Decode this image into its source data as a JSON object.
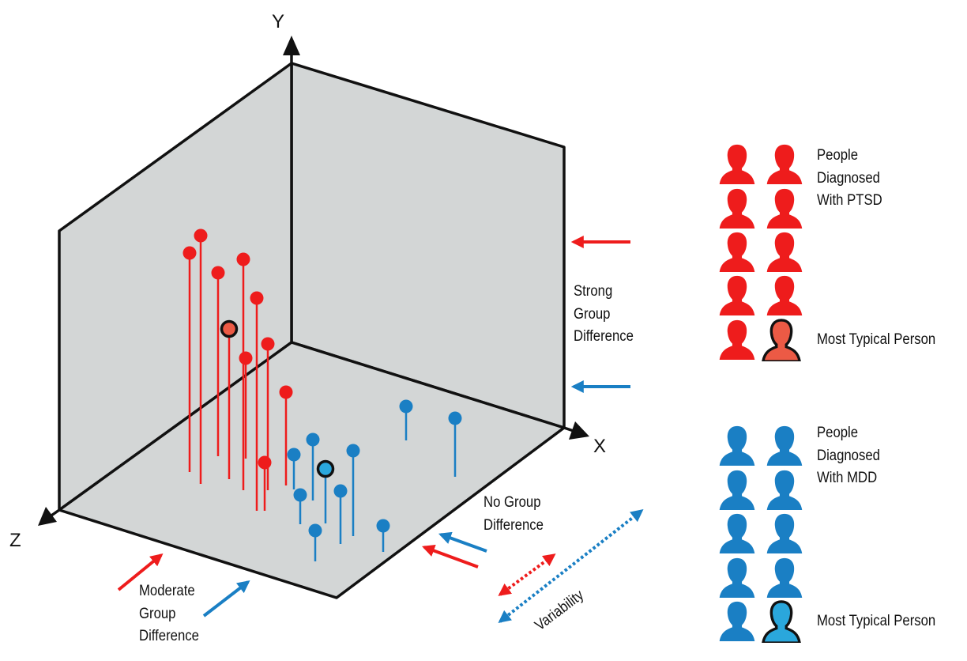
{
  "axes": {
    "x": "X",
    "y": "Y",
    "z": "Z"
  },
  "labels": {
    "strong": [
      "Strong",
      "Group",
      "Difference"
    ],
    "moderate": [
      "Moderate",
      "Group",
      "Difference"
    ],
    "none": [
      "No Group",
      "Difference"
    ],
    "variability": "Variability"
  },
  "legend": {
    "ptsd": {
      "title": [
        "People",
        "Diagnosed",
        "With PTSD"
      ],
      "typical": "Most Typical Person",
      "color": "#ee1c1c",
      "typical_color": "#ec5a45"
    },
    "mdd": {
      "title": [
        "People",
        "Diagnosed",
        "With MDD"
      ],
      "typical": "Most Typical Person",
      "color": "#1a7fc4",
      "typical_color": "#2aa7dc"
    }
  },
  "colors": {
    "panel": "#d3d6d6",
    "line": "#111111",
    "red": "#ee1c1c",
    "blue": "#1a7fc4"
  },
  "icons": [
    "person-silhouette-icon",
    "axis-arrow-icon",
    "arrow-icon"
  ]
}
